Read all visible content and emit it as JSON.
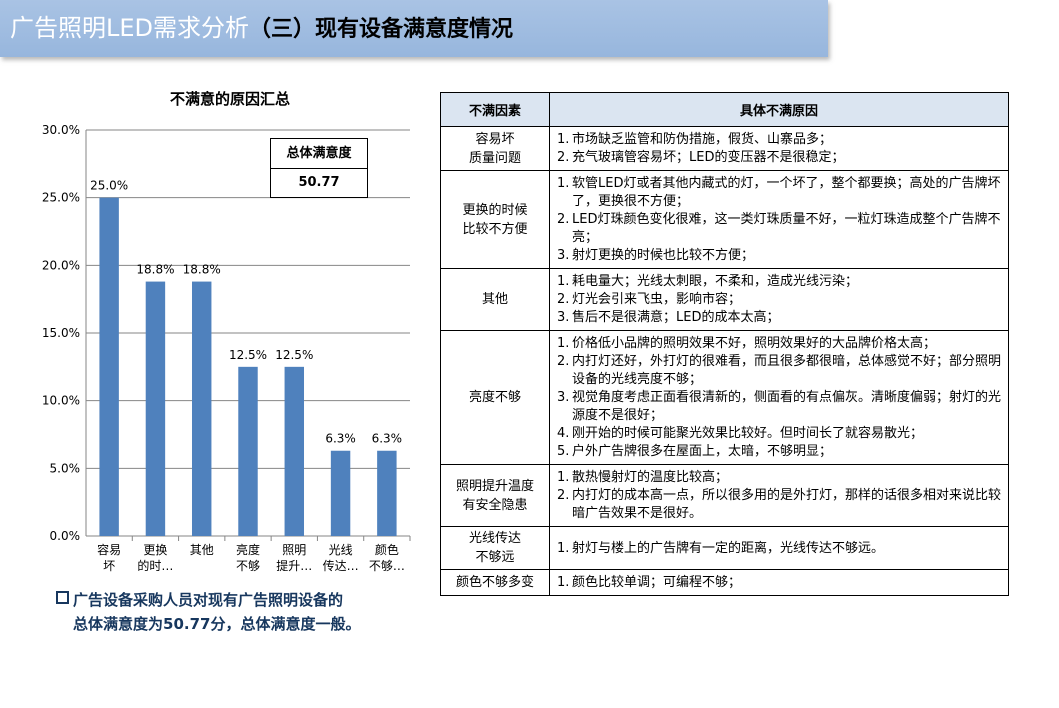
{
  "header": {
    "title_light": "广告照明LED需求分析",
    "title_dark": "（三）现有设备满意度情况"
  },
  "summary": {
    "label": "总体满意度",
    "value": "50.77"
  },
  "conclusion": {
    "line1": "广告设备采购人员对现有广告照明设备的",
    "line2": "总体满意度为50.77分，总体满意度一般。"
  },
  "chart_data": {
    "type": "bar",
    "title": "不满意的原因汇总",
    "categories": [
      [
        "容易",
        "坏"
      ],
      [
        "更换",
        "的时…"
      ],
      [
        "其他"
      ],
      [
        "亮度",
        "不够"
      ],
      [
        "照明",
        "提升…"
      ],
      [
        "光线",
        "传达…"
      ],
      [
        "颜色",
        "不够…"
      ]
    ],
    "values": [
      25.0,
      18.8,
      18.8,
      12.5,
      12.5,
      6.3,
      6.3
    ],
    "data_labels": [
      "25.0%",
      "18.8%",
      "18.8%",
      "12.5%",
      "12.5%",
      "6.3%",
      "6.3%"
    ],
    "y_ticks": [
      "0.0%",
      "5.0%",
      "10.0%",
      "15.0%",
      "20.0%",
      "25.0%",
      "30.0%"
    ],
    "ylim": [
      0,
      30
    ],
    "grid": true,
    "bar_color": "#4f81bd"
  },
  "table": {
    "headers": [
      "不满因素",
      "具体不满原因"
    ],
    "rows": [
      {
        "cause": [
          "容易坏",
          "质量问题"
        ],
        "items": [
          "市场缺乏监管和防伪措施，假货、山寨品多；",
          "充气玻璃管容易坏；LED的变压器不是很稳定；"
        ]
      },
      {
        "cause": [
          "更换的时候",
          "比较不方便"
        ],
        "items": [
          "软管LED灯或者其他内藏式的灯，一个坏了，整个都要换；高处的广告牌坏了，更换很不方便；",
          "LED灯珠颜色变化很难，这一类灯珠质量不好，一粒灯珠造成整个广告牌不亮；",
          "射灯更换的时候也比较不方便；"
        ]
      },
      {
        "cause": [
          "其他"
        ],
        "items": [
          "耗电量大；光线太刺眼，不柔和，造成光线污染；",
          "灯光会引来飞虫，影响市容；",
          "售后不是很满意；LED的成本太高；"
        ]
      },
      {
        "cause": [
          "亮度不够"
        ],
        "items": [
          "价格低小品牌的照明效果不好，照明效果好的大品牌价格太高；",
          "内打灯还好，外打灯的很难看，而且很多都很暗，总体感觉不好；部分照明设备的光线亮度不够；",
          "视觉角度考虑正面看很清新的，侧面看的有点偏灰。清晰度偏弱；射灯的光源度不是很好；",
          "刚开始的时候可能聚光效果比较好。但时间长了就容易散光；",
          "户外广告牌很多在屋面上，太暗，不够明显；"
        ]
      },
      {
        "cause": [
          "照明提升温度",
          "有安全隐患"
        ],
        "items": [
          "散热慢射灯的温度比较高；",
          "内打灯的成本高一点，所以很多用的是外打灯，那样的话很多相对来说比较暗广告效果不是很好。"
        ]
      },
      {
        "cause": [
          "光线传达",
          "不够远"
        ],
        "items": [
          "射灯与楼上的广告牌有一定的距离，光线传达不够远。"
        ]
      },
      {
        "cause": [
          "颜色不够多变"
        ],
        "items": [
          "颜色比较单调；可编程不够；"
        ]
      }
    ]
  }
}
